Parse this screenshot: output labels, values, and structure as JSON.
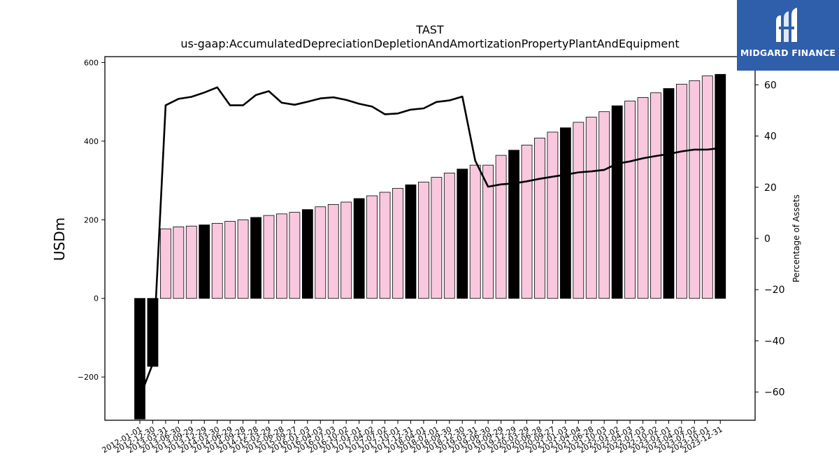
{
  "chart_data": {
    "type": "bar",
    "title": "TAST",
    "subtitle": "us-gaap:AccumulatedDepreciationDepletionAndAmortizationPropertyPlantAndEquipment",
    "ylabel": "USDm",
    "ylabel_right": "Percentage of Assets",
    "ylim": [
      -310,
      615
    ],
    "ylim_right": [
      -71,
      71
    ],
    "yticks": [
      -200,
      0,
      200,
      400,
      600
    ],
    "yticks_right": [
      -60,
      -40,
      -20,
      0,
      20,
      40,
      60
    ],
    "colors": {
      "annual": "#000000",
      "quarter": "#f9c8df",
      "line": "#000000"
    },
    "categories": [
      "2012-01-01",
      "2012-12-30",
      "2013-03-31",
      "2013-06-30",
      "2013-09-29",
      "2013-12-29",
      "2014-03-30",
      "2014-06-29",
      "2014-09-28",
      "2014-12-28",
      "2015-03-29",
      "2015-06-28",
      "2015-09-27",
      "2016-01-03",
      "2016-04-03",
      "2016-07-03",
      "2016-10-02",
      "2017-01-01",
      "2017-04-02",
      "2017-07-02",
      "2017-10-01",
      "2017-12-31",
      "2018-04-01",
      "2018-07-01",
      "2018-09-30",
      "2018-12-30",
      "2019-03-31",
      "2019-06-30",
      "2019-09-29",
      "2019-12-29",
      "2020-03-29",
      "2020-06-28",
      "2020-09-27",
      "2021-01-03",
      "2021-04-04",
      "2021-06-28",
      "2021-10-03",
      "2022-01-02",
      "2022-04-03",
      "2022-07-03",
      "2022-10-02",
      "2023-01-01",
      "2023-04-02",
      "2023-07-02",
      "2023-10-01",
      "2023-12-31"
    ],
    "series": [
      {
        "values": [
          -307,
          -173,
          177,
          182,
          184,
          187,
          191,
          196,
          200,
          206,
          211,
          215,
          219,
          226,
          233,
          239,
          245,
          254,
          261,
          270,
          280,
          289,
          296,
          308,
          319,
          329,
          339,
          339,
          364,
          377,
          390,
          408,
          423,
          434,
          448,
          461,
          475,
          490,
          502,
          511,
          523,
          534,
          545,
          554,
          566,
          570
        ],
        "annual": [
          true,
          true,
          false,
          false,
          false,
          true,
          false,
          false,
          false,
          true,
          false,
          false,
          false,
          true,
          false,
          false,
          false,
          true,
          false,
          false,
          false,
          true,
          false,
          false,
          false,
          true,
          false,
          false,
          false,
          true,
          false,
          false,
          false,
          true,
          false,
          false,
          false,
          true,
          false,
          false,
          false,
          true,
          false,
          false,
          false,
          true
        ]
      },
      {
        "values": [
          -62,
          -49,
          52,
          54.5,
          55.3,
          57,
          59,
          52,
          52,
          56,
          57.5,
          53,
          52.2,
          53.4,
          54.7,
          55.1,
          54.1,
          52.6,
          51.5,
          48.5,
          48.8,
          50.3,
          50.8,
          53.3,
          53.9,
          55.4,
          30.4,
          20.2,
          21.1,
          21.5,
          22.3,
          23.3,
          24.1,
          24.9,
          25.8,
          26.2,
          26.8,
          29.2,
          30.1,
          31.3,
          32.2,
          33,
          34,
          34.7,
          34.7,
          35.3
        ]
      }
    ]
  },
  "logo": {
    "text": "MIDGARD FINANCE"
  }
}
